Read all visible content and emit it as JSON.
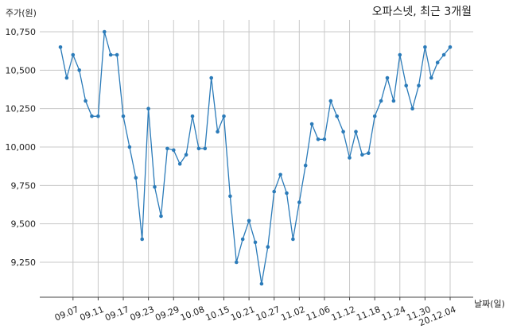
{
  "chart_data": {
    "type": "line",
    "title": "오파스넷, 최근 3개월",
    "ylabel": "주가(원)",
    "xlabel": "날짜(일)",
    "ylim": [
      9050,
      10800
    ],
    "yticks": [
      9250,
      9500,
      9750,
      10000,
      10250,
      10500,
      10750
    ],
    "ytick_labels": [
      "9,250",
      "9,500",
      "9,750",
      "10,000",
      "10,250",
      "10,500",
      "10,750"
    ],
    "xtick_labels": [
      "09.07",
      "09.11",
      "09.17",
      "09.23",
      "09.29",
      "10.08",
      "10.15",
      "10.21",
      "10.27",
      "11.02",
      "11.06",
      "11.12",
      "11.18",
      "11.24",
      "11.30",
      "20.12.04"
    ],
    "xtick_indices": [
      2,
      6,
      10,
      14,
      18,
      22,
      26,
      30,
      34,
      38,
      42,
      46,
      50,
      54,
      58,
      62
    ],
    "grid": true,
    "line_color": "#2b7bb9",
    "series": [
      {
        "values": [
          10650,
          10450,
          10600,
          10500,
          10300,
          10200,
          10200,
          10750,
          10600,
          10600,
          10200,
          10000,
          9800,
          9400,
          10250,
          9740,
          9550,
          9990,
          9980,
          9890,
          9950,
          10200,
          9990,
          9990,
          10450,
          10100,
          10200,
          9680,
          9250,
          9400,
          9520,
          9380,
          9110,
          9350,
          9710,
          9820,
          9700,
          9400,
          9640,
          9880,
          10150,
          10050,
          10050,
          10300,
          10200,
          10100,
          9930,
          10100,
          9950,
          9960,
          10200,
          10300,
          10450,
          10300,
          10600,
          10400,
          10250,
          10400,
          10650,
          10450,
          10550,
          10600,
          10650
        ]
      }
    ]
  }
}
